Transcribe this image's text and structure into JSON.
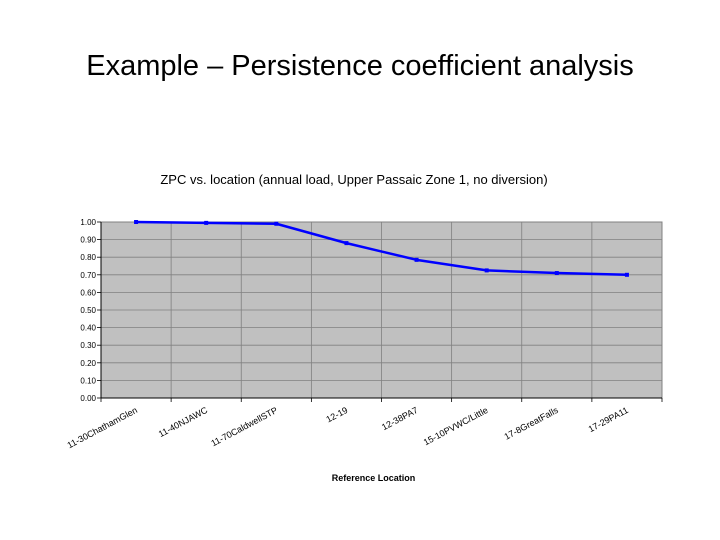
{
  "slide": {
    "title": "Example – Persistence coefficient analysis"
  },
  "chart_data": {
    "type": "line",
    "title": "ZPC vs. location (annual load, Upper Passaic Zone 1, no diversion)",
    "xlabel": "Reference Location",
    "ylabel": "",
    "ylim": [
      0,
      1
    ],
    "yticks": [
      "0.00",
      "0.10",
      "0.20",
      "0.30",
      "0.40",
      "0.50",
      "0.60",
      "0.70",
      "0.80",
      "0.90",
      "1.00"
    ],
    "categories": [
      "11-30ChathamGlen",
      "11-40NJAWC",
      "11-70CaldwellSTP",
      "12-19",
      "12-38PA7",
      "15-10PVWC/Little",
      "17-8GreatFalls",
      "17-29PA11"
    ],
    "series": [
      {
        "values": [
          1.0,
          0.995,
          0.99,
          0.88,
          0.785,
          0.725,
          0.71,
          0.7
        ]
      }
    ],
    "grid": true,
    "legend": "none",
    "colors": {
      "plot_bg": "#c0c0c0",
      "line": "#0000ff",
      "grid": "#808080"
    }
  }
}
